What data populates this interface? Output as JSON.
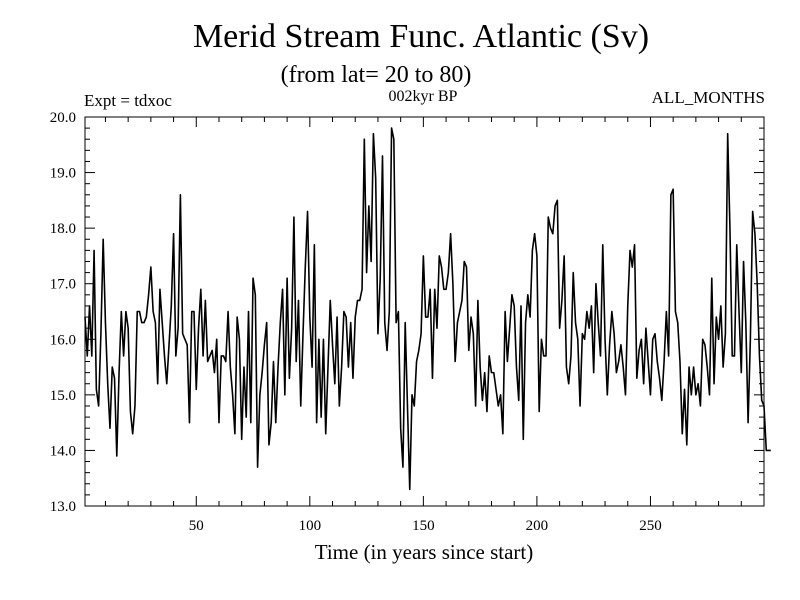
{
  "chart_data": {
    "type": "line",
    "title": "Merid Stream Func. Atlantic (Sv)",
    "subtitle": "(from lat= 20 to 80)",
    "experiment": "Expt = tdxoc",
    "period": "002kyr BP",
    "months": "ALL_MONTHS",
    "xlabel": "Time (in years since start)",
    "ylabel": "",
    "xlim": [
      1,
      300
    ],
    "ylim": [
      13.0,
      20.0
    ],
    "grid": false,
    "x_ticks": [
      50,
      100,
      150,
      200,
      250
    ],
    "x_tick_labels": [
      "50",
      "100",
      "150",
      "200",
      "250"
    ],
    "y_ticks": [
      13,
      14,
      15,
      16,
      17,
      18,
      19,
      20
    ],
    "y_tick_labels": [
      "13.0",
      "14.0",
      "15.0",
      "16.0",
      "17.0",
      "18.0",
      "19.0",
      "20.0"
    ],
    "series": [
      {
        "x_start": 1,
        "x_step": 1,
        "values": [
          16.4,
          15.7,
          16.6,
          15.7,
          17.6,
          15.1,
          14.8,
          16.1,
          17.8,
          16.3,
          15.2,
          14.4,
          15.5,
          15.3,
          13.9,
          15.4,
          16.5,
          15.7,
          16.5,
          16.2,
          14.7,
          14.3,
          14.8,
          16.5,
          16.5,
          16.3,
          16.3,
          16.4,
          16.8,
          17.3,
          16.5,
          16.3,
          15.2,
          16.9,
          16.3,
          15.7,
          15.2,
          15.9,
          16.6,
          17.9,
          15.7,
          16.2,
          18.6,
          16.1,
          16.0,
          15.9,
          14.5,
          16.5,
          16.5,
          15.1,
          16.2,
          16.9,
          15.7,
          16.7,
          15.6,
          15.7,
          15.8,
          15.4,
          16.0,
          14.5,
          15.7,
          15.7,
          15.6,
          16.5,
          15.5,
          15.0,
          14.3,
          16.4,
          16.0,
          14.2,
          15.5,
          14.6,
          16.5,
          14.5,
          17.1,
          16.8,
          13.7,
          15.0,
          15.4,
          15.9,
          16.3,
          14.1,
          14.5,
          15.6,
          14.5,
          15.5,
          16.3,
          16.9,
          15.0,
          17.1,
          15.3,
          16.2,
          18.2,
          15.6,
          16.7,
          14.8,
          16.1,
          17.3,
          18.3,
          16.4,
          15.5,
          17.7,
          14.5,
          16.0,
          14.6,
          16.0,
          14.3,
          15.5,
          16.7,
          15.9,
          15.2,
          16.4,
          14.8,
          15.5,
          16.5,
          16.4,
          15.5,
          16.3,
          15.3,
          16.4,
          16.7,
          16.7,
          16.9,
          19.6,
          17.2,
          18.4,
          17.4,
          19.7,
          18.9,
          16.1,
          17.1,
          19.3,
          16.3,
          15.8,
          16.5,
          19.8,
          19.6,
          16.3,
          16.5,
          14.4,
          13.7,
          16.3,
          14.8,
          13.3,
          15.0,
          14.8,
          15.6,
          15.8,
          16.1,
          17.5,
          16.4,
          16.4,
          16.9,
          15.3,
          16.9,
          16.2,
          17.5,
          17.3,
          16.9,
          16.9,
          17.2,
          17.9,
          17.0,
          15.6,
          16.3,
          16.5,
          16.7,
          17.4,
          17.3,
          15.8,
          16.4,
          16.1,
          14.8,
          16.7,
          15.5,
          14.9,
          15.4,
          14.7,
          15.7,
          15.4,
          15.4,
          15.1,
          14.8,
          15.0,
          14.3,
          16.5,
          15.6,
          16.2,
          16.8,
          16.6,
          15.5,
          14.9,
          16.6,
          14.2,
          16.3,
          16.8,
          16.4,
          17.6,
          17.9,
          17.5,
          14.7,
          16.0,
          15.7,
          15.7,
          18.2,
          18.0,
          17.9,
          18.4,
          18.5,
          16.2,
          16.7,
          17.5,
          15.5,
          15.2,
          15.7,
          17.2,
          16.3,
          16.0,
          14.8,
          16.1,
          16.0,
          16.5,
          16.2,
          16.6,
          15.4,
          17.0,
          16.3,
          15.7,
          17.7,
          16.0,
          15.0,
          15.9,
          16.5,
          16.1,
          15.4,
          15.6,
          15.9,
          15.5,
          15.0,
          16.6,
          17.6,
          17.3,
          17.7,
          15.3,
          15.8,
          16.0,
          15.2,
          16.2,
          15.6,
          15.0,
          16.0,
          16.1,
          15.6,
          15.3,
          14.9,
          15.6,
          16.5,
          15.7,
          18.6,
          18.7,
          16.5,
          16.3,
          15.6,
          14.3,
          15.1,
          14.1,
          15.5,
          15.0,
          15.5,
          15.0,
          15.2,
          14.8,
          16.0,
          15.9,
          15.5,
          15.0,
          17.1,
          15.2,
          16.4,
          16.0,
          16.6,
          15.5,
          16.1,
          19.7,
          18.0,
          15.7,
          15.7,
          17.7,
          16.5,
          15.4,
          17.4,
          16.3,
          14.5,
          16.0,
          18.3,
          17.9,
          17.0,
          15.7,
          14.9,
          14.8,
          14.0,
          14.0,
          14.0
        ]
      }
    ]
  }
}
